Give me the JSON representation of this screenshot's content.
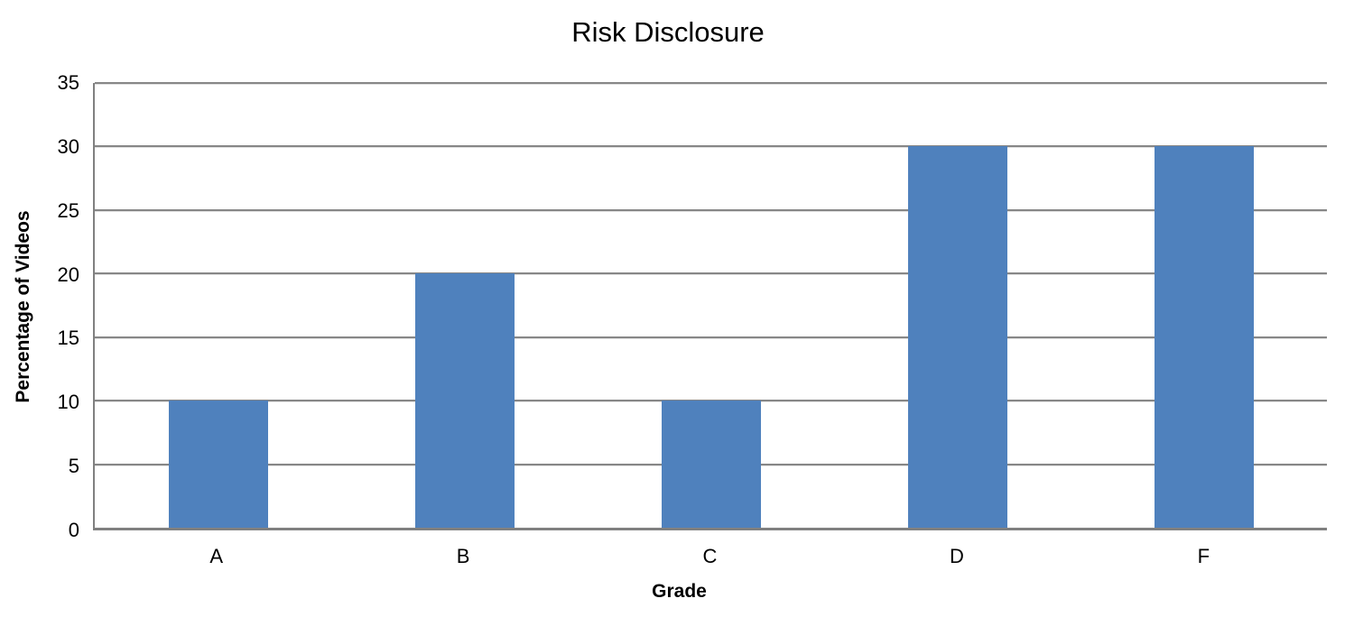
{
  "chart_data": {
    "type": "bar",
    "title": "Risk Disclosure",
    "xlabel": "Grade",
    "ylabel": "Percentage of Videos",
    "categories": [
      "A",
      "B",
      "C",
      "D",
      "F"
    ],
    "values": [
      10,
      20,
      10,
      30,
      30
    ],
    "ylim": [
      0,
      35
    ],
    "yticks": [
      0,
      5,
      10,
      15,
      20,
      25,
      30,
      35
    ],
    "grid": "horizontal",
    "legend_position": "none",
    "colors": {
      "bar": "#4F81BD",
      "gridline": "#878787",
      "axis": "#808080",
      "text": "#000000",
      "background": "#FFFFFF"
    }
  }
}
